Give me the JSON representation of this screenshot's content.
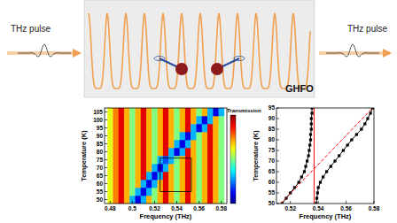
{
  "schematic": {
    "labels": [
      "THz pulse",
      "THz pulse"
    ],
    "sample": "GHFO"
  },
  "chart_data": [
    {
      "type": "heatmap",
      "xlabel": "Frequency (THz)",
      "ylabel": "Temperature (K)",
      "xlim": [
        0.475,
        0.585
      ],
      "ylim": [
        47.5,
        107.5
      ],
      "xticks": [
        0.48,
        0.5,
        0.52,
        0.54,
        0.56,
        0.58
      ],
      "yticks": [
        50,
        55,
        60,
        65,
        70,
        75,
        80,
        85,
        90,
        95,
        100,
        105
      ],
      "x": [
        0.48,
        0.485,
        0.49,
        0.495,
        0.5,
        0.505,
        0.51,
        0.515,
        0.52,
        0.525,
        0.53,
        0.535,
        0.54,
        0.545,
        0.55,
        0.555,
        0.56,
        0.565,
        0.57,
        0.575,
        0.58
      ],
      "y": [
        50,
        55,
        60,
        65,
        70,
        75,
        80,
        85,
        90,
        95,
        100,
        105
      ],
      "z": [
        [
          0.6,
          0.75,
          0.9,
          0.7,
          0.3,
          0.1,
          0.3,
          0.7,
          0.5,
          0.7,
          0.9,
          0.7,
          0.5,
          0.7,
          0.9,
          0.7,
          0.5,
          0.7,
          0.9,
          0.7,
          0.5
        ],
        [
          0.6,
          0.75,
          0.9,
          0.7,
          0.5,
          0.3,
          0.1,
          0.3,
          0.5,
          0.7,
          0.9,
          0.7,
          0.5,
          0.7,
          0.9,
          0.7,
          0.5,
          0.7,
          0.9,
          0.7,
          0.5
        ],
        [
          0.6,
          0.75,
          0.9,
          0.7,
          0.5,
          0.7,
          0.3,
          0.1,
          0.3,
          0.7,
          0.9,
          0.7,
          0.5,
          0.7,
          0.9,
          0.7,
          0.5,
          0.7,
          0.9,
          0.7,
          0.5
        ],
        [
          0.6,
          0.75,
          0.9,
          0.7,
          0.5,
          0.7,
          0.9,
          0.3,
          0.1,
          0.3,
          0.9,
          0.7,
          0.5,
          0.7,
          0.9,
          0.7,
          0.5,
          0.7,
          0.9,
          0.7,
          0.5
        ],
        [
          0.6,
          0.75,
          0.9,
          0.7,
          0.5,
          0.7,
          0.9,
          0.7,
          0.3,
          0.1,
          0.3,
          0.7,
          0.5,
          0.7,
          0.9,
          0.7,
          0.5,
          0.7,
          0.9,
          0.7,
          0.5
        ],
        [
          0.6,
          0.75,
          0.9,
          0.7,
          0.5,
          0.7,
          0.9,
          0.7,
          0.5,
          0.3,
          0.2,
          0.3,
          0.5,
          0.7,
          0.9,
          0.7,
          0.5,
          0.7,
          0.9,
          0.7,
          0.5
        ],
        [
          0.6,
          0.75,
          0.9,
          0.7,
          0.5,
          0.7,
          0.9,
          0.7,
          0.5,
          0.7,
          0.9,
          0.3,
          0.1,
          0.3,
          0.9,
          0.7,
          0.5,
          0.7,
          0.9,
          0.7,
          0.5
        ],
        [
          0.6,
          0.75,
          0.9,
          0.7,
          0.5,
          0.7,
          0.9,
          0.7,
          0.5,
          0.7,
          0.9,
          0.7,
          0.3,
          0.1,
          0.3,
          0.7,
          0.5,
          0.7,
          0.9,
          0.7,
          0.5
        ],
        [
          0.6,
          0.75,
          0.9,
          0.7,
          0.5,
          0.7,
          0.9,
          0.7,
          0.5,
          0.7,
          0.9,
          0.7,
          0.5,
          0.3,
          0.1,
          0.3,
          0.5,
          0.7,
          0.9,
          0.7,
          0.5
        ],
        [
          0.6,
          0.75,
          0.9,
          0.7,
          0.5,
          0.7,
          0.9,
          0.7,
          0.5,
          0.7,
          0.9,
          0.7,
          0.5,
          0.7,
          0.9,
          0.3,
          0.1,
          0.3,
          0.9,
          0.7,
          0.5
        ],
        [
          0.6,
          0.75,
          0.9,
          0.7,
          0.5,
          0.7,
          0.9,
          0.7,
          0.5,
          0.7,
          0.9,
          0.7,
          0.5,
          0.7,
          0.9,
          0.7,
          0.3,
          0.1,
          0.3,
          0.7,
          0.5
        ],
        [
          0.6,
          0.75,
          0.9,
          0.7,
          0.5,
          0.7,
          0.9,
          0.7,
          0.5,
          0.7,
          0.9,
          0.7,
          0.5,
          0.7,
          0.9,
          0.7,
          0.5,
          0.7,
          0.3,
          0.1,
          0.3
        ]
      ],
      "colorbar": {
        "title": "Transmission",
        "range": [
          0,
          1
        ]
      },
      "region": {
        "x": [
          0.525,
          0.553
        ],
        "y": [
          55,
          76
        ]
      }
    },
    {
      "type": "line",
      "xlabel": "Frequency (THz)",
      "ylabel": "Temperature (K)",
      "xlim": [
        0.51,
        0.58
      ],
      "ylim": [
        50,
        95
      ],
      "xticks": [
        0.52,
        0.54,
        0.56,
        0.58
      ],
      "yticks": [
        50,
        55,
        60,
        65,
        70,
        75,
        80,
        85,
        90,
        95
      ],
      "series": [
        {
          "color": "#000000",
          "marker": "square",
          "line_style": "solid",
          "x": [
            0.514,
            0.517,
            0.52,
            0.523,
            0.526,
            0.528,
            0.53,
            0.531,
            0.532,
            0.533,
            0.5335,
            0.534,
            0.5345,
            0.5345,
            0.535,
            0.535,
            0.535,
            0.5355,
            0.5355
          ],
          "values": [
            50,
            52.5,
            55,
            57.5,
            60,
            62.5,
            65,
            67.5,
            70,
            72.5,
            75,
            77.5,
            80,
            82.5,
            85,
            87.5,
            90,
            92.5,
            95
          ]
        },
        {
          "color": "#000000",
          "marker": "square",
          "line_style": "solid",
          "x": [
            0.5385,
            0.539,
            0.5395,
            0.54,
            0.5415,
            0.5435,
            0.546,
            0.549,
            0.552,
            0.555,
            0.558,
            0.561,
            0.564,
            0.5675,
            0.571,
            0.5735,
            0.5755,
            0.5775,
            0.579
          ],
          "values": [
            50,
            52.5,
            55,
            57.5,
            60,
            62.5,
            65,
            67.5,
            70,
            72.5,
            75,
            77.5,
            80,
            82.5,
            85,
            87.5,
            90,
            92.5,
            95
          ]
        },
        {
          "color": "#ff0000",
          "line_style": "dashed",
          "x": [
            0.513,
            0.579
          ],
          "values": [
            50,
            95
          ]
        },
        {
          "color": "#ff0000",
          "line_style": "solid",
          "x": [
            0.537,
            0.537
          ],
          "values": [
            50,
            95
          ]
        }
      ]
    }
  ]
}
